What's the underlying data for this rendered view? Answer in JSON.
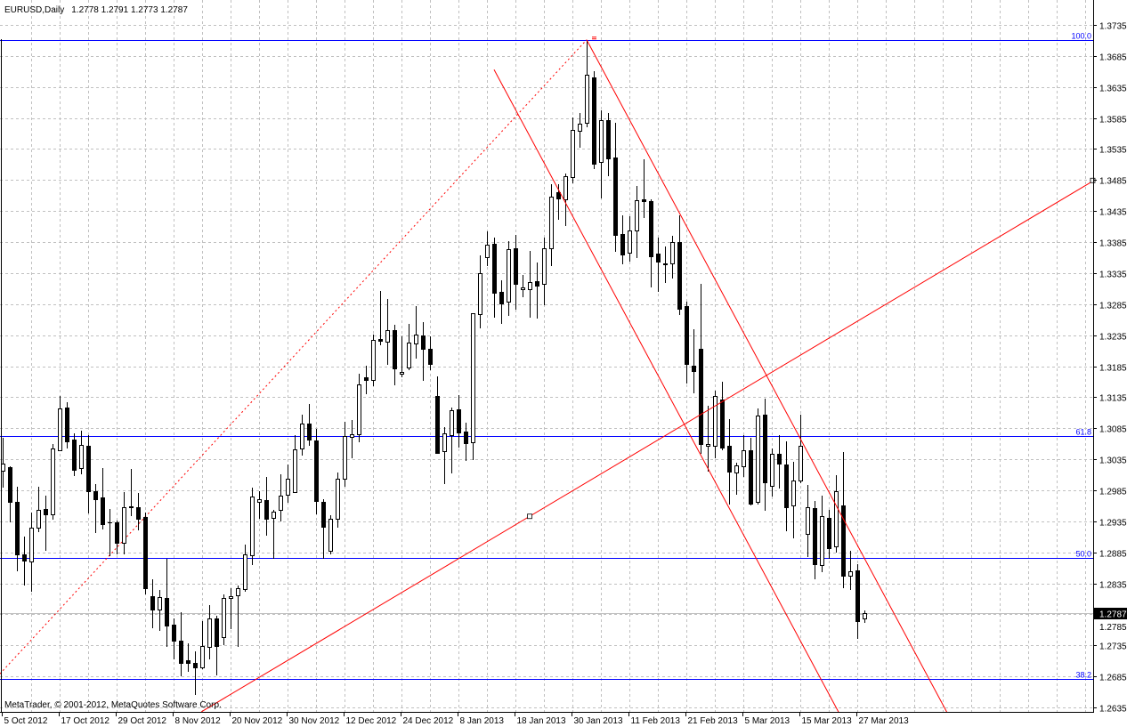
{
  "header": {
    "symbol_timeframe": "EURUSD,Daily",
    "ohlc_readout": "1.2778 1.2791 1.2773 1.2787"
  },
  "watermark": "MetaTrader, © 2001-2012, MetaQuotes Software Corp.",
  "colors": {
    "background": "#ffffff",
    "grid": "#c0c0c0",
    "bull_body": "#ffffff",
    "bear_body": "#000000",
    "candle_outline": "#000000",
    "fibo_lines": "#0000ff",
    "trendlines": "#ff0000",
    "current_price_line": "#c0c0c0",
    "current_price_label_bg": "#000000",
    "current_price_label_text": "#ffffff"
  },
  "chart_data": {
    "type": "candlestick",
    "symbol": "EURUSD",
    "timeframe": "Daily",
    "grid": true,
    "ylim": [
      1.2612,
      1.3775
    ],
    "y_ticks": [
      "1.3735",
      "1.3685",
      "1.3635",
      "1.3585",
      "1.3535",
      "1.3485",
      "1.3435",
      "1.3385",
      "1.3335",
      "1.3285",
      "1.3235",
      "1.3185",
      "1.3135",
      "1.3085",
      "1.3035",
      "1.2985",
      "1.2935",
      "1.2885",
      "1.2835",
      "1.2785",
      "1.2735",
      "1.2685",
      "1.2635"
    ],
    "x_ticks": [
      {
        "bar": 0,
        "label": "5 Oct 2012"
      },
      {
        "bar": 8,
        "label": "17 Oct 2012"
      },
      {
        "bar": 16,
        "label": "29 Oct 2012"
      },
      {
        "bar": 24,
        "label": "8 Nov 2012"
      },
      {
        "bar": 32,
        "label": "20 Nov 2012"
      },
      {
        "bar": 40,
        "label": "30 Nov 2012"
      },
      {
        "bar": 48,
        "label": "12 Dec 2012"
      },
      {
        "bar": 56,
        "label": "24 Dec 2012"
      },
      {
        "bar": 64,
        "label": "8 Jan 2013"
      },
      {
        "bar": 72,
        "label": "18 Jan 2013"
      },
      {
        "bar": 80,
        "label": "30 Jan 2013"
      },
      {
        "bar": 88,
        "label": "11 Feb 2013"
      },
      {
        "bar": 96,
        "label": "21 Feb 2013"
      },
      {
        "bar": 104,
        "label": "5 Mar 2013"
      },
      {
        "bar": 112,
        "label": "15 Mar 2013"
      },
      {
        "bar": 120,
        "label": "27 Mar 2013"
      }
    ],
    "ohlc_fields": [
      "open",
      "high",
      "low",
      "close"
    ],
    "ohlc": [
      [
        1.3016,
        1.3069,
        1.2991,
        1.3028
      ],
      [
        1.3022,
        1.3024,
        1.2935,
        1.2966
      ],
      [
        1.2966,
        1.2991,
        1.2856,
        1.2882
      ],
      [
        1.2882,
        1.291,
        1.2833,
        1.2872
      ],
      [
        1.287,
        1.2949,
        1.2823,
        1.2925
      ],
      [
        1.2925,
        1.2991,
        1.2919,
        1.2953
      ],
      [
        1.2955,
        1.2976,
        1.2889,
        1.2946
      ],
      [
        1.2946,
        1.3059,
        1.2939,
        1.3052
      ],
      [
        1.3049,
        1.3137,
        1.3049,
        1.3117
      ],
      [
        1.3118,
        1.3127,
        1.3054,
        1.3064
      ],
      [
        1.3067,
        1.3077,
        1.3009,
        1.3018
      ],
      [
        1.3021,
        1.3081,
        1.3012,
        1.3058
      ],
      [
        1.3057,
        1.3074,
        1.2949,
        1.2983
      ],
      [
        1.2983,
        1.2995,
        1.2917,
        1.297
      ],
      [
        1.2973,
        1.3021,
        1.2923,
        1.293
      ],
      [
        1.2933,
        1.2955,
        1.288,
        1.2934
      ],
      [
        1.2933,
        1.2936,
        1.2883,
        1.29
      ],
      [
        1.29,
        1.2982,
        1.2883,
        1.2958
      ],
      [
        1.2958,
        1.3019,
        1.2945,
        1.2959
      ],
      [
        1.2958,
        1.2981,
        1.2922,
        1.2939
      ],
      [
        1.2942,
        1.2949,
        1.2819,
        1.2827
      ],
      [
        1.2814,
        1.2841,
        1.2764,
        1.2793
      ],
      [
        1.2793,
        1.2824,
        1.276,
        1.2813
      ],
      [
        1.2811,
        1.2874,
        1.2734,
        1.2767
      ],
      [
        1.2768,
        1.2778,
        1.2714,
        1.2742
      ],
      [
        1.2742,
        1.2788,
        1.2687,
        1.2707
      ],
      [
        1.2711,
        1.2738,
        1.2694,
        1.2707
      ],
      [
        1.2707,
        1.2725,
        1.2656,
        1.2699
      ],
      [
        1.2699,
        1.2774,
        1.2698,
        1.2734
      ],
      [
        1.2732,
        1.28,
        1.2714,
        1.2778
      ],
      [
        1.2778,
        1.2783,
        1.2688,
        1.2734
      ],
      [
        1.2748,
        1.2817,
        1.2737,
        1.2811
      ],
      [
        1.2811,
        1.2827,
        1.2763,
        1.2814
      ],
      [
        1.2816,
        1.2831,
        1.2734,
        1.2827
      ],
      [
        1.2826,
        1.2897,
        1.2823,
        1.2882
      ],
      [
        1.288,
        1.2989,
        1.2866,
        1.2975
      ],
      [
        1.2966,
        1.2983,
        1.294,
        1.297
      ],
      [
        1.2969,
        1.3006,
        1.2913,
        1.2939
      ],
      [
        1.294,
        1.2953,
        1.2876,
        1.295
      ],
      [
        1.2953,
        1.3011,
        1.2936,
        1.2976
      ],
      [
        1.2978,
        1.3027,
        1.2966,
        1.3004
      ],
      [
        1.2982,
        1.3074,
        1.2982,
        1.3051
      ],
      [
        1.3052,
        1.3107,
        1.3042,
        1.3092
      ],
      [
        1.3092,
        1.3124,
        1.3058,
        1.3067
      ],
      [
        1.3065,
        1.3084,
        1.2948,
        1.2968
      ],
      [
        1.2966,
        1.297,
        1.2876,
        1.2926
      ],
      [
        1.2887,
        1.2945,
        1.2883,
        1.2939
      ],
      [
        1.2939,
        1.3014,
        1.2926,
        1.3004
      ],
      [
        1.3004,
        1.3095,
        1.2992,
        1.3072
      ],
      [
        1.3071,
        1.3098,
        1.3038,
        1.3075
      ],
      [
        1.3075,
        1.3173,
        1.3064,
        1.3156
      ],
      [
        1.3167,
        1.3186,
        1.3141,
        1.3163
      ],
      [
        1.3163,
        1.3236,
        1.3154,
        1.3227
      ],
      [
        1.3229,
        1.3306,
        1.322,
        1.3226
      ],
      [
        1.3224,
        1.3293,
        1.3189,
        1.3243
      ],
      [
        1.3243,
        1.3252,
        1.3156,
        1.3181
      ],
      [
        1.3173,
        1.3233,
        1.3168,
        1.3176
      ],
      [
        1.3183,
        1.3253,
        1.318,
        1.3223
      ],
      [
        1.3222,
        1.3282,
        1.3199,
        1.3236
      ],
      [
        1.3234,
        1.3256,
        1.3163,
        1.3213
      ],
      [
        1.3213,
        1.3233,
        1.318,
        1.3189
      ],
      [
        1.3137,
        1.3168,
        1.3045,
        1.3045
      ],
      [
        1.3048,
        1.3087,
        1.2996,
        1.3077
      ],
      [
        1.3074,
        1.3118,
        1.3014,
        1.3114
      ],
      [
        1.3115,
        1.3138,
        1.3055,
        1.3078
      ],
      [
        1.308,
        1.3094,
        1.3034,
        1.3061
      ],
      [
        1.3062,
        1.327,
        1.3035,
        1.327
      ],
      [
        1.3269,
        1.3363,
        1.3247,
        1.3335
      ],
      [
        1.3361,
        1.3402,
        1.3348,
        1.3381
      ],
      [
        1.3382,
        1.3392,
        1.3265,
        1.3303
      ],
      [
        1.3305,
        1.3323,
        1.3254,
        1.3286
      ],
      [
        1.3289,
        1.3386,
        1.3267,
        1.3374
      ],
      [
        1.3375,
        1.3396,
        1.3277,
        1.3318
      ],
      [
        1.3309,
        1.3332,
        1.3297,
        1.3312
      ],
      [
        1.3309,
        1.3371,
        1.3265,
        1.332
      ],
      [
        1.3322,
        1.3352,
        1.3263,
        1.3315
      ],
      [
        1.3318,
        1.3392,
        1.3285,
        1.3375
      ],
      [
        1.3375,
        1.3478,
        1.3348,
        1.3458
      ],
      [
        1.3465,
        1.3478,
        1.3422,
        1.3455
      ],
      [
        1.3454,
        1.3495,
        1.3412,
        1.3491
      ],
      [
        1.349,
        1.3586,
        1.3481,
        1.3566
      ],
      [
        1.3564,
        1.3593,
        1.3538,
        1.3576
      ],
      [
        1.3577,
        1.3711,
        1.3571,
        1.3655
      ],
      [
        1.365,
        1.366,
        1.3504,
        1.3511
      ],
      [
        1.3514,
        1.3597,
        1.3457,
        1.3581
      ],
      [
        1.3581,
        1.3593,
        1.3493,
        1.352
      ],
      [
        1.3521,
        1.3577,
        1.3371,
        1.3396
      ],
      [
        1.3398,
        1.3428,
        1.3351,
        1.3365
      ],
      [
        1.3368,
        1.3427,
        1.3355,
        1.3404
      ],
      [
        1.3404,
        1.3475,
        1.3361,
        1.3452
      ],
      [
        1.3454,
        1.3518,
        1.3425,
        1.3451
      ],
      [
        1.3451,
        1.3454,
        1.3313,
        1.3362
      ],
      [
        1.3366,
        1.3392,
        1.3306,
        1.3353
      ],
      [
        1.3351,
        1.3378,
        1.332,
        1.3349
      ],
      [
        1.3351,
        1.3395,
        1.3328,
        1.3385
      ],
      [
        1.3385,
        1.3428,
        1.3269,
        1.3277
      ],
      [
        1.3282,
        1.3289,
        1.3158,
        1.3189
      ],
      [
        1.3186,
        1.3244,
        1.3143,
        1.3177
      ],
      [
        1.3213,
        1.3318,
        1.3045,
        1.3059
      ],
      [
        1.3057,
        1.3121,
        1.3016,
        1.3059
      ],
      [
        1.3057,
        1.3145,
        1.3038,
        1.3137
      ],
      [
        1.3131,
        1.316,
        1.3051,
        1.3054
      ],
      [
        1.3057,
        1.31,
        1.2963,
        1.3015
      ],
      [
        1.3014,
        1.3029,
        1.2979,
        1.3025
      ],
      [
        1.3024,
        1.3074,
        1.3008,
        1.3049
      ],
      [
        1.3049,
        1.3069,
        1.2962,
        1.2963
      ],
      [
        1.2966,
        1.3117,
        1.2963,
        1.3105
      ],
      [
        1.3107,
        1.3133,
        1.2953,
        1.2998
      ],
      [
        1.2992,
        1.3052,
        1.2976,
        1.3044
      ],
      [
        1.3044,
        1.3074,
        1.2989,
        1.3028
      ],
      [
        1.3027,
        1.3064,
        1.292,
        1.2958
      ],
      [
        1.2961,
        1.3031,
        1.2909,
        1.3001
      ],
      [
        1.3001,
        1.3107,
        1.2998,
        1.3057
      ],
      [
        1.2915,
        1.2994,
        1.2879,
        1.2958
      ],
      [
        1.2956,
        1.2968,
        1.2843,
        1.2866
      ],
      [
        1.2864,
        1.2976,
        1.2854,
        1.2943
      ],
      [
        1.294,
        1.2953,
        1.2876,
        1.2892
      ],
      [
        1.2895,
        1.3009,
        1.2886,
        1.2983
      ],
      [
        1.2961,
        1.3047,
        1.2829,
        1.2847
      ],
      [
        1.2847,
        1.2887,
        1.2826,
        1.2854
      ],
      [
        1.2856,
        1.2866,
        1.2747,
        1.2774
      ],
      [
        1.2778,
        1.2791,
        1.2773,
        1.2787
      ]
    ],
    "current_price": "1.2787",
    "fibonacci": {
      "from": {
        "bar": -0.4,
        "price": 1.2689
      },
      "to": {
        "bar": 82,
        "price": 1.3711
      },
      "levels": [
        {
          "label": "100.0",
          "price": 1.3711
        },
        {
          "label": "61.8",
          "price": 1.3072
        },
        {
          "label": "50.0",
          "price": 1.2876
        },
        {
          "label": "38.2",
          "price": 1.2681
        }
      ]
    },
    "trendlines": [
      {
        "name": "support-ray",
        "p1": {
          "bar": 27.9,
          "price": 1.2628
        },
        "p2": {
          "bar": 74,
          "price": 1.2943
        },
        "ray": true
      },
      {
        "name": "channel-upper",
        "p1": {
          "bar": 82,
          "price": 1.3711
        },
        "p2": {
          "bar": 132.6,
          "price": 1.2627
        },
        "ray": false
      },
      {
        "name": "channel-lower",
        "p1": {
          "bar": 69,
          "price": 1.3663
        },
        "p2": {
          "bar": 117.4,
          "price": 1.2627
        },
        "ray": false
      }
    ]
  }
}
